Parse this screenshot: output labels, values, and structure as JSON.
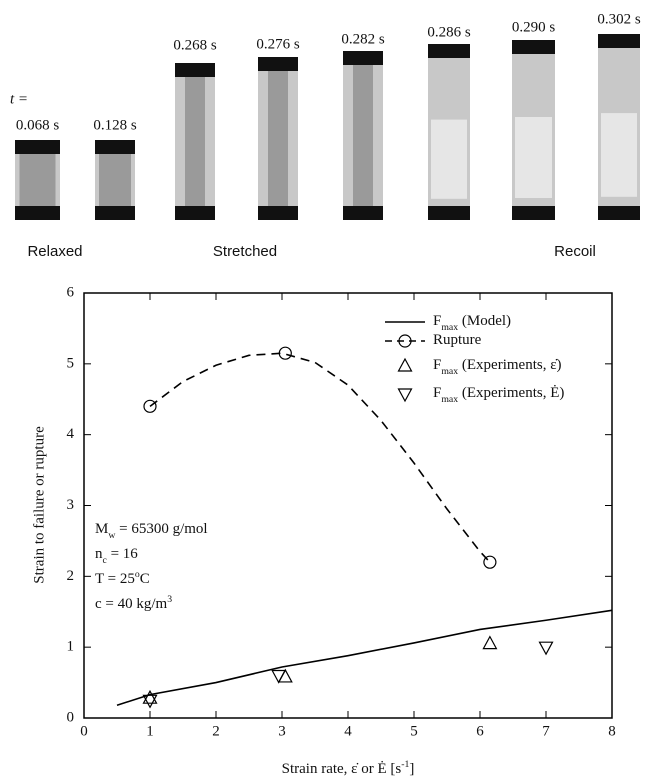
{
  "header": {
    "time_prefix": "t =",
    "frames": [
      "0.068 s",
      "0.128 s",
      "0.268 s",
      "0.276 s",
      "0.282 s",
      "0.286 s",
      "0.290 s",
      "0.302 s"
    ],
    "groups": [
      "Relaxed",
      "Stretched",
      "Recoil"
    ]
  },
  "chart_data": {
    "type": "line",
    "xlabel": [
      {
        "t": "Strain rate, ε̇ or Ė [s"
      },
      {
        "sup": "-1"
      },
      {
        "t": "]"
      }
    ],
    "ylabel": "Strain to failure or rupture",
    "xlim": [
      0,
      8
    ],
    "ylim": [
      0,
      6
    ],
    "xticks": [
      0,
      1,
      2,
      3,
      4,
      5,
      6,
      7,
      8
    ],
    "yticks": [
      0,
      1,
      2,
      3,
      4,
      5,
      6
    ],
    "series": [
      {
        "name": [
          {
            "t": "F"
          },
          {
            "sub": "max"
          },
          {
            "t": " (Model)"
          }
        ],
        "style": "solid",
        "marker": "none",
        "color": "#000",
        "x": [
          0.5,
          1,
          2,
          3,
          4,
          5,
          6,
          7,
          8
        ],
        "values": [
          0.18,
          0.33,
          0.5,
          0.72,
          0.88,
          1.06,
          1.25,
          1.38,
          1.52
        ]
      },
      {
        "name": [
          {
            "t": "Rupture"
          }
        ],
        "style": "dashed",
        "marker": "circle",
        "color": "#000",
        "x": [
          1,
          3.05,
          6.15
        ],
        "values": [
          4.4,
          5.15,
          2.2
        ],
        "curve": {
          "x": [
            1,
            1.5,
            2,
            2.5,
            3,
            3.5,
            4,
            4.5,
            5,
            5.5,
            6,
            6.15
          ],
          "values": [
            4.4,
            4.75,
            4.98,
            5.12,
            5.15,
            5.02,
            4.7,
            4.2,
            3.6,
            2.95,
            2.35,
            2.2
          ]
        }
      },
      {
        "name": [
          {
            "t": "F"
          },
          {
            "sub": "max"
          },
          {
            "t": " (Experiments, ε̇)"
          }
        ],
        "style": "none",
        "marker": "triangle-up",
        "color": "#000",
        "x": [
          1,
          3.05,
          6.15
        ],
        "values": [
          0.28,
          0.58,
          1.05
        ]
      },
      {
        "name": [
          {
            "t": "F"
          },
          {
            "sub": "max"
          },
          {
            "t": " (Experiments, Ė)"
          }
        ],
        "style": "none",
        "marker": "triangle-down",
        "color": "#000",
        "x": [
          1,
          2.95,
          7
        ],
        "values": [
          0.25,
          0.6,
          1.0
        ]
      }
    ],
    "annotations": [
      [
        {
          "t": "M"
        },
        {
          "sub": "w"
        },
        {
          "t": " = 65300 g/mol"
        }
      ],
      [
        {
          "t": "n"
        },
        {
          "sub": "c"
        },
        {
          "t": " = 16"
        }
      ],
      [
        {
          "t": "T = 25"
        },
        {
          "sup": "o"
        },
        {
          "t": "C"
        }
      ],
      [
        {
          "t": "c = 40 kg/m"
        },
        {
          "sup": "3"
        }
      ]
    ]
  }
}
